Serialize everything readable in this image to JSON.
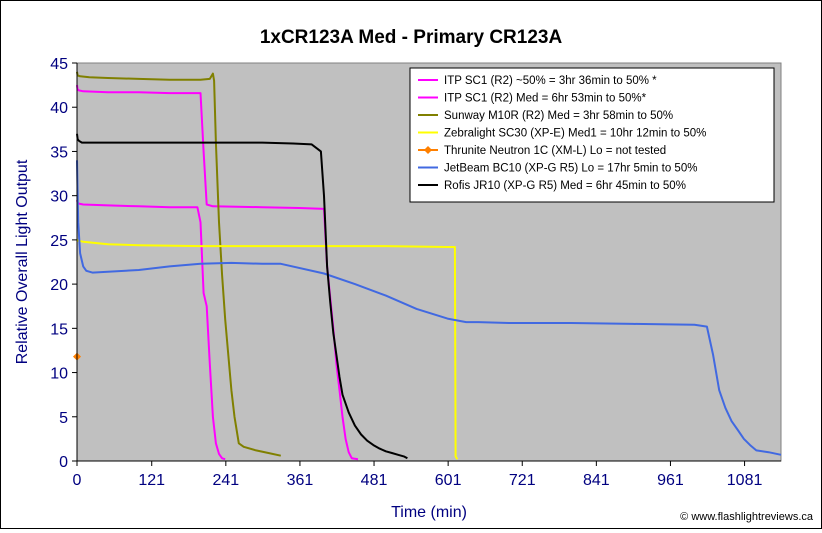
{
  "chart_data": {
    "type": "line",
    "title": "1xCR123A Med - Primary CR123A",
    "xlabel": "Time (min)",
    "ylabel": "Relative Overall Light Output",
    "xlim": [
      0,
      1140
    ],
    "ylim": [
      0,
      45
    ],
    "xticks": [
      0,
      121,
      241,
      361,
      481,
      601,
      721,
      841,
      961,
      1081
    ],
    "yticks": [
      0,
      5,
      10,
      15,
      20,
      25,
      30,
      35,
      40,
      45
    ],
    "grid": false,
    "legend_position": "top-right",
    "watermark": "© www.flashlightreviews.ca",
    "colors": {
      "plot_bg": "#c0c0c0",
      "axis_text": "#000080",
      "title": "#000000"
    },
    "series": [
      {
        "name": "ITP SC1 (R2) ~50% = 3hr 36min to 50% *",
        "color": "#ff00ff",
        "x": [
          0,
          1,
          3,
          10,
          50,
          100,
          150,
          195,
          200,
          205,
          210,
          215,
          220,
          225,
          230,
          235,
          240
        ],
        "y": [
          29.5,
          29.2,
          29.1,
          29.0,
          28.9,
          28.8,
          28.7,
          28.7,
          27.0,
          19.0,
          17.5,
          11.0,
          5.0,
          2.0,
          0.8,
          0.3,
          0.2
        ]
      },
      {
        "name": "ITP SC1 (R2) Med = 6hr 53min to 50%*",
        "color": "#ff00ff",
        "x": [
          0,
          1,
          3,
          10,
          50,
          100,
          150,
          200,
          205,
          210,
          220,
          300,
          360,
          400,
          405,
          410,
          415,
          420,
          425,
          430,
          435,
          440,
          445,
          455
        ],
        "y": [
          42.5,
          42.0,
          41.9,
          41.8,
          41.7,
          41.7,
          41.6,
          41.6,
          35.0,
          29.0,
          28.8,
          28.7,
          28.6,
          28.5,
          22.0,
          18.5,
          15.0,
          11.0,
          8.0,
          5.0,
          2.5,
          1.0,
          0.3,
          0.2
        ]
      },
      {
        "name": "Sunway M10R (R2) Med = 3hr 58min to 50%",
        "color": "#808000",
        "x": [
          0,
          1,
          5,
          20,
          50,
          100,
          150,
          200,
          215,
          220,
          222,
          225,
          230,
          235,
          240,
          245,
          250,
          255,
          262,
          270,
          290,
          310,
          330
        ],
        "y": [
          44.0,
          43.6,
          43.5,
          43.4,
          43.3,
          43.2,
          43.1,
          43.1,
          43.2,
          43.8,
          43.0,
          36.0,
          27.0,
          21.0,
          16.0,
          12.0,
          8.0,
          5.0,
          2.0,
          1.6,
          1.2,
          0.9,
          0.6
        ]
      },
      {
        "name": "Zebralight SC30 (XP-E) Med1 = 10hr 12min to 50%",
        "color": "#ffff00",
        "x": [
          0,
          2,
          10,
          50,
          100,
          200,
          300,
          400,
          500,
          600,
          612,
          613,
          616
        ],
        "y": [
          25.0,
          24.9,
          24.8,
          24.5,
          24.4,
          24.3,
          24.3,
          24.3,
          24.3,
          24.2,
          24.2,
          0.5,
          0.2
        ]
      },
      {
        "name": "Thrunite Neutron 1C (XM-L) Lo = not tested",
        "color": "#ff8000",
        "marker": "diamond",
        "x": [
          0
        ],
        "y": [
          11.8
        ]
      },
      {
        "name": "JetBeam BC10 (XP-G R5) Lo = 17hr 5min to 50%",
        "color": "#4169e1",
        "x": [
          0,
          2,
          5,
          10,
          15,
          25,
          50,
          100,
          150,
          200,
          250,
          300,
          330,
          400,
          450,
          500,
          550,
          600,
          630,
          650,
          700,
          800,
          900,
          1000,
          1020,
          1030,
          1040,
          1050,
          1060,
          1070,
          1080,
          1090,
          1100,
          1120,
          1140
        ],
        "y": [
          34.0,
          27.0,
          23.5,
          22.0,
          21.5,
          21.3,
          21.4,
          21.6,
          22.0,
          22.3,
          22.4,
          22.3,
          22.3,
          21.2,
          20.0,
          18.7,
          17.2,
          16.1,
          15.7,
          15.7,
          15.6,
          15.6,
          15.5,
          15.4,
          15.2,
          12.0,
          8.0,
          6.0,
          4.5,
          3.5,
          2.5,
          1.8,
          1.2,
          1.0,
          0.7
        ]
      },
      {
        "name": "Rofis JR10 (XP-G R5) Med = 6hr 45min to 50%",
        "color": "#000000",
        "x": [
          0,
          1,
          3,
          8,
          20,
          50,
          100,
          150,
          200,
          250,
          300,
          350,
          380,
          395,
          400,
          405,
          410,
          415,
          420,
          425,
          430,
          440,
          450,
          460,
          470,
          480,
          490,
          500,
          510,
          520,
          530,
          535
        ],
        "y": [
          37.0,
          36.4,
          36.2,
          36.0,
          36.0,
          36.0,
          36.0,
          36.0,
          36.0,
          36.0,
          36.0,
          35.9,
          35.8,
          35.0,
          30.0,
          22.0,
          18.0,
          14.5,
          12.0,
          9.5,
          7.5,
          5.5,
          4.0,
          3.0,
          2.3,
          1.8,
          1.4,
          1.1,
          0.9,
          0.7,
          0.5,
          0.3
        ]
      }
    ]
  }
}
